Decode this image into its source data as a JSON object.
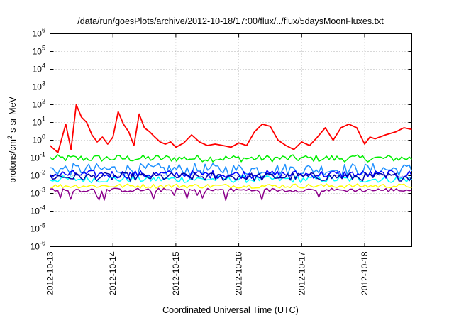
{
  "chart_data": {
    "type": "line",
    "title": "/data/run/goesPlots/archive/2012-10-18/17:00/flux/../flux/5daysMoonFluxes.txt",
    "xlabel": "Coordinated Universal Time (UTC)",
    "ylabel": {
      "pre": "protons/cm",
      "sup": "2",
      "post": "-s-sr-MeV"
    },
    "y_scale": "log",
    "ylim": [
      1e-06,
      1000000.0
    ],
    "y_ticks": [
      {
        "value": 1000000.0,
        "base": "10",
        "exp": "6"
      },
      {
        "value": 100000.0,
        "base": "10",
        "exp": "5"
      },
      {
        "value": 10000.0,
        "base": "10",
        "exp": "4"
      },
      {
        "value": 1000.0,
        "base": "10",
        "exp": "3"
      },
      {
        "value": 100.0,
        "base": "10",
        "exp": "2"
      },
      {
        "value": 10.0,
        "base": "10",
        "exp": "1"
      },
      {
        "value": 1.0,
        "base": "10",
        "exp": "0"
      },
      {
        "value": 0.1,
        "base": "10",
        "exp": "-1"
      },
      {
        "value": 0.01,
        "base": "10",
        "exp": "-2"
      },
      {
        "value": 0.001,
        "base": "10",
        "exp": "-3"
      },
      {
        "value": 0.0001,
        "base": "10",
        "exp": "-4"
      },
      {
        "value": 1e-05,
        "base": "10",
        "exp": "-5"
      },
      {
        "value": 1e-06,
        "base": "10",
        "exp": "-6"
      }
    ],
    "xlim": [
      "2012-10-13T00:00",
      "2012-10-18T18:00"
    ],
    "x_ticks": [
      "2012-10-13",
      "2012-10-14",
      "2012-10-15",
      "2012-10-16",
      "2012-10-17",
      "2012-10-18"
    ],
    "grid": true,
    "series": [
      {
        "color": "#ff0000",
        "x": [
          "2012-10-13T00:00",
          "2012-10-13T03:00",
          "2012-10-13T06:00",
          "2012-10-13T08:00",
          "2012-10-13T10:00",
          "2012-10-13T12:00",
          "2012-10-13T14:00",
          "2012-10-13T16:00",
          "2012-10-13T18:00",
          "2012-10-13T20:00",
          "2012-10-13T22:00",
          "2012-10-14T00:00",
          "2012-10-14T02:00",
          "2012-10-14T04:00",
          "2012-10-14T06:00",
          "2012-10-14T08:00",
          "2012-10-14T10:00",
          "2012-10-14T12:00",
          "2012-10-14T14:00",
          "2012-10-14T16:00",
          "2012-10-14T18:00",
          "2012-10-14T20:00",
          "2012-10-14T22:00",
          "2012-10-15T00:00",
          "2012-10-15T03:00",
          "2012-10-15T06:00",
          "2012-10-15T09:00",
          "2012-10-15T12:00",
          "2012-10-15T15:00",
          "2012-10-15T18:00",
          "2012-10-15T21:00",
          "2012-10-16T00:00",
          "2012-10-16T03:00",
          "2012-10-16T06:00",
          "2012-10-16T09:00",
          "2012-10-16T12:00",
          "2012-10-16T15:00",
          "2012-10-16T18:00",
          "2012-10-16T21:00",
          "2012-10-17T00:00",
          "2012-10-17T03:00",
          "2012-10-17T06:00",
          "2012-10-17T09:00",
          "2012-10-17T12:00",
          "2012-10-17T15:00",
          "2012-10-17T18:00",
          "2012-10-17T21:00",
          "2012-10-18T00:00",
          "2012-10-18T02:00",
          "2012-10-18T04:00",
          "2012-10-18T08:00",
          "2012-10-18T12:00",
          "2012-10-18T15:00",
          "2012-10-18T18:00"
        ],
        "values": [
          0.5,
          0.2,
          8,
          0.3,
          100,
          20,
          10,
          2,
          0.8,
          1.5,
          0.6,
          1.5,
          40,
          8,
          3,
          0.5,
          30,
          5,
          3,
          1.5,
          0.8,
          0.6,
          0.8,
          0.4,
          0.7,
          2,
          0.8,
          0.5,
          0.6,
          0.5,
          0.4,
          0.7,
          0.5,
          3,
          8,
          6,
          1,
          0.5,
          0.3,
          0.8,
          0.5,
          1.5,
          5,
          1,
          5,
          8,
          5,
          0.6,
          1.5,
          1.2,
          2,
          3,
          5,
          4
        ]
      },
      {
        "color": "#00ee00",
        "values_range": [
          0.06,
          0.15
        ]
      },
      {
        "color": "#00ffff",
        "values_range": [
          0.004,
          0.01
        ]
      },
      {
        "color": "#1e90ff",
        "values_range": [
          0.01,
          0.05
        ]
      },
      {
        "color": "#0000ff",
        "values_range": [
          0.007,
          0.02
        ]
      },
      {
        "color": "#0000aa",
        "values_range": [
          0.005,
          0.015
        ]
      },
      {
        "color": "#ffff00",
        "values_range": [
          0.002,
          0.0035
        ]
      },
      {
        "color": "#8b008b",
        "values_range": [
          0.0012,
          0.002
        ]
      }
    ]
  }
}
